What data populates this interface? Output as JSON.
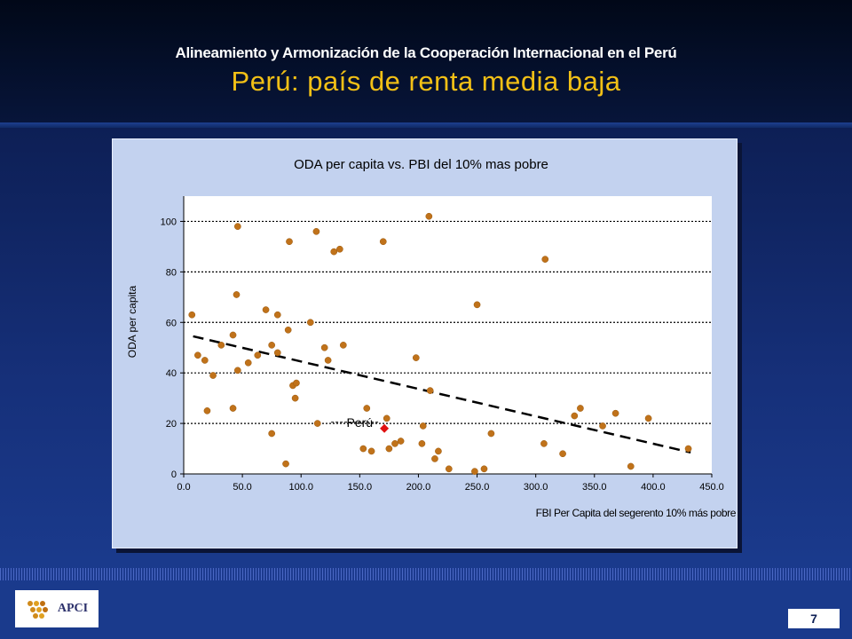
{
  "header": {
    "subtitle": "Alineamiento y Armonización de la Cooperación Internacional en el Perú",
    "title": "Perú: país de renta media baja"
  },
  "chart_data": {
    "type": "scatter",
    "title": "ODA per capita vs. PBI del 10% mas pobre",
    "xlabel": "FBI Per Capita del segerento 10% más pobre",
    "ylabel": "ODA per capita",
    "xlim": [
      0,
      450
    ],
    "ylim": [
      0,
      110
    ],
    "x_ticks": [
      "0.0",
      "50.0",
      "100.0",
      "150.0",
      "200.0",
      "250.0",
      "300.0",
      "350.0",
      "400.0",
      "450.0"
    ],
    "y_ticks": [
      "0",
      "20",
      "40",
      "60",
      "80",
      "100"
    ],
    "grid": "horizontal dotted",
    "marker_color": "#c0721a",
    "highlight_color": "#e01010",
    "trendline": {
      "x": [
        8,
        432
      ],
      "y": [
        54.5,
        8.5
      ],
      "style": "dashed"
    },
    "series": [
      {
        "points": [
          [
            7,
            63
          ],
          [
            12,
            47
          ],
          [
            18,
            45
          ],
          [
            20,
            25
          ],
          [
            25,
            39
          ],
          [
            32,
            51
          ],
          [
            42,
            55
          ],
          [
            42,
            26
          ],
          [
            45,
            71
          ],
          [
            46,
            41
          ],
          [
            46,
            98
          ],
          [
            55,
            44
          ],
          [
            63,
            47
          ],
          [
            70,
            65
          ],
          [
            75,
            51
          ],
          [
            75,
            16
          ],
          [
            80,
            63
          ],
          [
            80,
            48
          ],
          [
            87,
            4
          ],
          [
            89,
            57
          ],
          [
            90,
            92
          ],
          [
            93,
            35
          ],
          [
            95,
            30
          ],
          [
            96,
            36
          ],
          [
            108,
            60
          ],
          [
            113,
            96
          ],
          [
            114,
            20
          ],
          [
            120,
            50
          ],
          [
            123,
            45
          ],
          [
            128,
            88
          ],
          [
            133,
            89
          ],
          [
            136,
            51
          ],
          [
            153,
            10
          ],
          [
            156,
            26
          ],
          [
            160,
            9
          ],
          [
            170,
            92
          ],
          [
            173,
            22
          ],
          [
            175,
            10
          ],
          [
            180,
            12
          ],
          [
            185,
            13
          ],
          [
            198,
            46
          ],
          [
            203,
            12
          ],
          [
            204,
            19
          ],
          [
            209,
            102
          ],
          [
            210,
            33
          ],
          [
            214,
            6
          ],
          [
            217,
            9
          ],
          [
            226,
            2
          ],
          [
            248,
            1
          ],
          [
            250,
            67
          ],
          [
            256,
            2
          ],
          [
            262,
            16
          ],
          [
            307,
            12
          ],
          [
            308,
            85
          ],
          [
            323,
            8
          ],
          [
            333,
            23
          ],
          [
            338,
            26
          ],
          [
            357,
            19
          ],
          [
            368,
            24
          ],
          [
            381,
            3
          ],
          [
            396,
            22
          ],
          [
            430,
            10
          ]
        ]
      }
    ],
    "highlight": {
      "label": "Perú",
      "x": 171,
      "y": 18
    }
  },
  "footer": {
    "logo_text": "APCI",
    "page_number": "7"
  }
}
